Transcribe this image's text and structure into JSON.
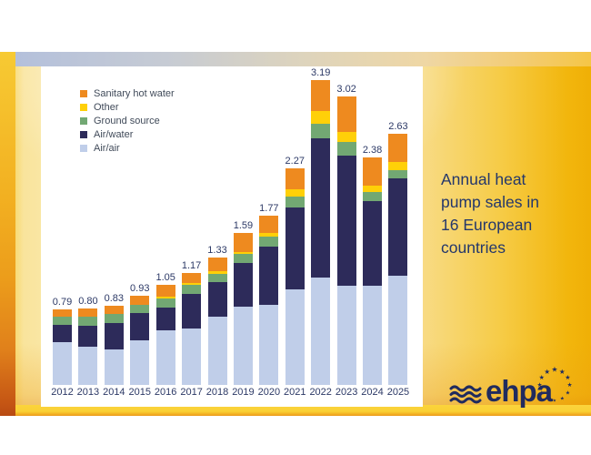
{
  "slide": {
    "title_lines": [
      "Annual heat",
      "pump sales in",
      "16 European",
      "countries"
    ],
    "title_color": "#24376B",
    "logo": {
      "text": "ehpa",
      "color": "#202B5E",
      "star_glyph": "★"
    },
    "background_accents": {
      "gold": "#F2B60D",
      "pale_yellow": "#FBEFC9",
      "top_band_blue": "#B2BFDC",
      "bottom_band_yellow": "#FBD43C",
      "left_strip_orange": "#EC9D1B"
    }
  },
  "chart_data": {
    "type": "bar",
    "stacked": true,
    "categories": [
      "2012",
      "2013",
      "2014",
      "2015",
      "2016",
      "2017",
      "2018",
      "2019",
      "2020",
      "2021",
      "2022",
      "2023",
      "2024",
      "2025"
    ],
    "series": [
      {
        "name": "Air/air",
        "color": "#C0CEE9",
        "values": [
          0.445,
          0.4,
          0.37,
          0.47,
          0.57,
          0.59,
          0.715,
          0.82,
          0.84,
          1.0,
          1.12,
          1.04,
          1.04,
          1.14
        ]
      },
      {
        "name": "Air/water",
        "color": "#2D2B5A",
        "values": [
          0.185,
          0.22,
          0.28,
          0.28,
          0.24,
          0.36,
          0.36,
          0.46,
          0.61,
          0.86,
          1.46,
          1.36,
          0.885,
          1.02
        ]
      },
      {
        "name": "Ground source",
        "color": "#72A873",
        "values": [
          0.085,
          0.09,
          0.09,
          0.09,
          0.095,
          0.095,
          0.09,
          0.09,
          0.1,
          0.11,
          0.15,
          0.14,
          0.095,
          0.09
        ]
      },
      {
        "name": "Other",
        "color": "#FFD008",
        "values": [
          0,
          0,
          0,
          0,
          0.02,
          0.025,
          0.03,
          0.02,
          0.045,
          0.08,
          0.14,
          0.11,
          0.07,
          0.08
        ]
      },
      {
        "name": "Sanitary hot water",
        "color": "#EE8A1F",
        "values": [
          0.075,
          0.09,
          0.09,
          0.09,
          0.125,
          0.1,
          0.135,
          0.2,
          0.175,
          0.22,
          0.32,
          0.37,
          0.29,
          0.3
        ]
      }
    ],
    "totals": [
      0.79,
      0.8,
      0.83,
      0.93,
      1.05,
      1.17,
      1.33,
      1.59,
      1.77,
      2.27,
      3.19,
      3.02,
      2.38,
      2.63
    ],
    "legend": [
      {
        "label": "Sanitary hot water",
        "color": "#EE8A1F"
      },
      {
        "label": "Other",
        "color": "#FFD008"
      },
      {
        "label": "Ground source",
        "color": "#72A873"
      },
      {
        "label": "Air/water",
        "color": "#2D2B5A"
      },
      {
        "label": "Air/air",
        "color": "#C0CEE9"
      }
    ],
    "legend_position": "top-left",
    "value_labels": "totals above each bar, 2 decimals",
    "gridlines": false,
    "axes_visible": false,
    "ylim": [
      0,
      3.4
    ],
    "label_color": "#2C3966"
  }
}
